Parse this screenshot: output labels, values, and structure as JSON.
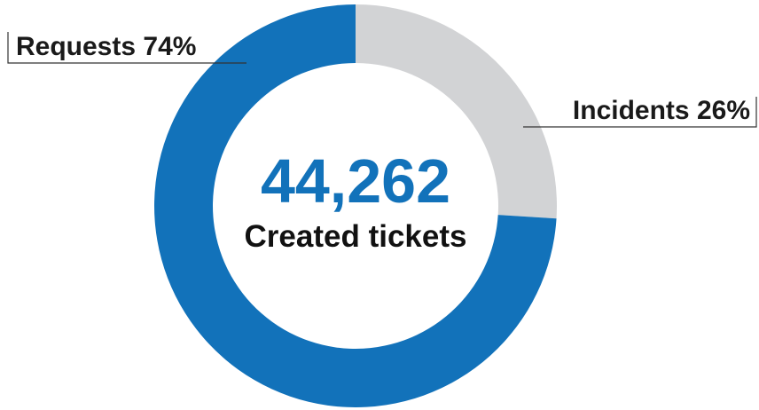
{
  "chart_data": {
    "type": "pie",
    "variant": "donut",
    "categories": [
      "Incidents",
      "Requests"
    ],
    "values": [
      26,
      74
    ],
    "unit": "%",
    "slice_labels": [
      "Incidents 26%",
      "Requests 74%"
    ],
    "center_value": "44,262",
    "center_caption": "Created tickets",
    "legend": "none",
    "colors": {
      "Incidents": "#d2d3d5",
      "Requests": "#1272ba",
      "center_value": "#1272ba"
    }
  }
}
